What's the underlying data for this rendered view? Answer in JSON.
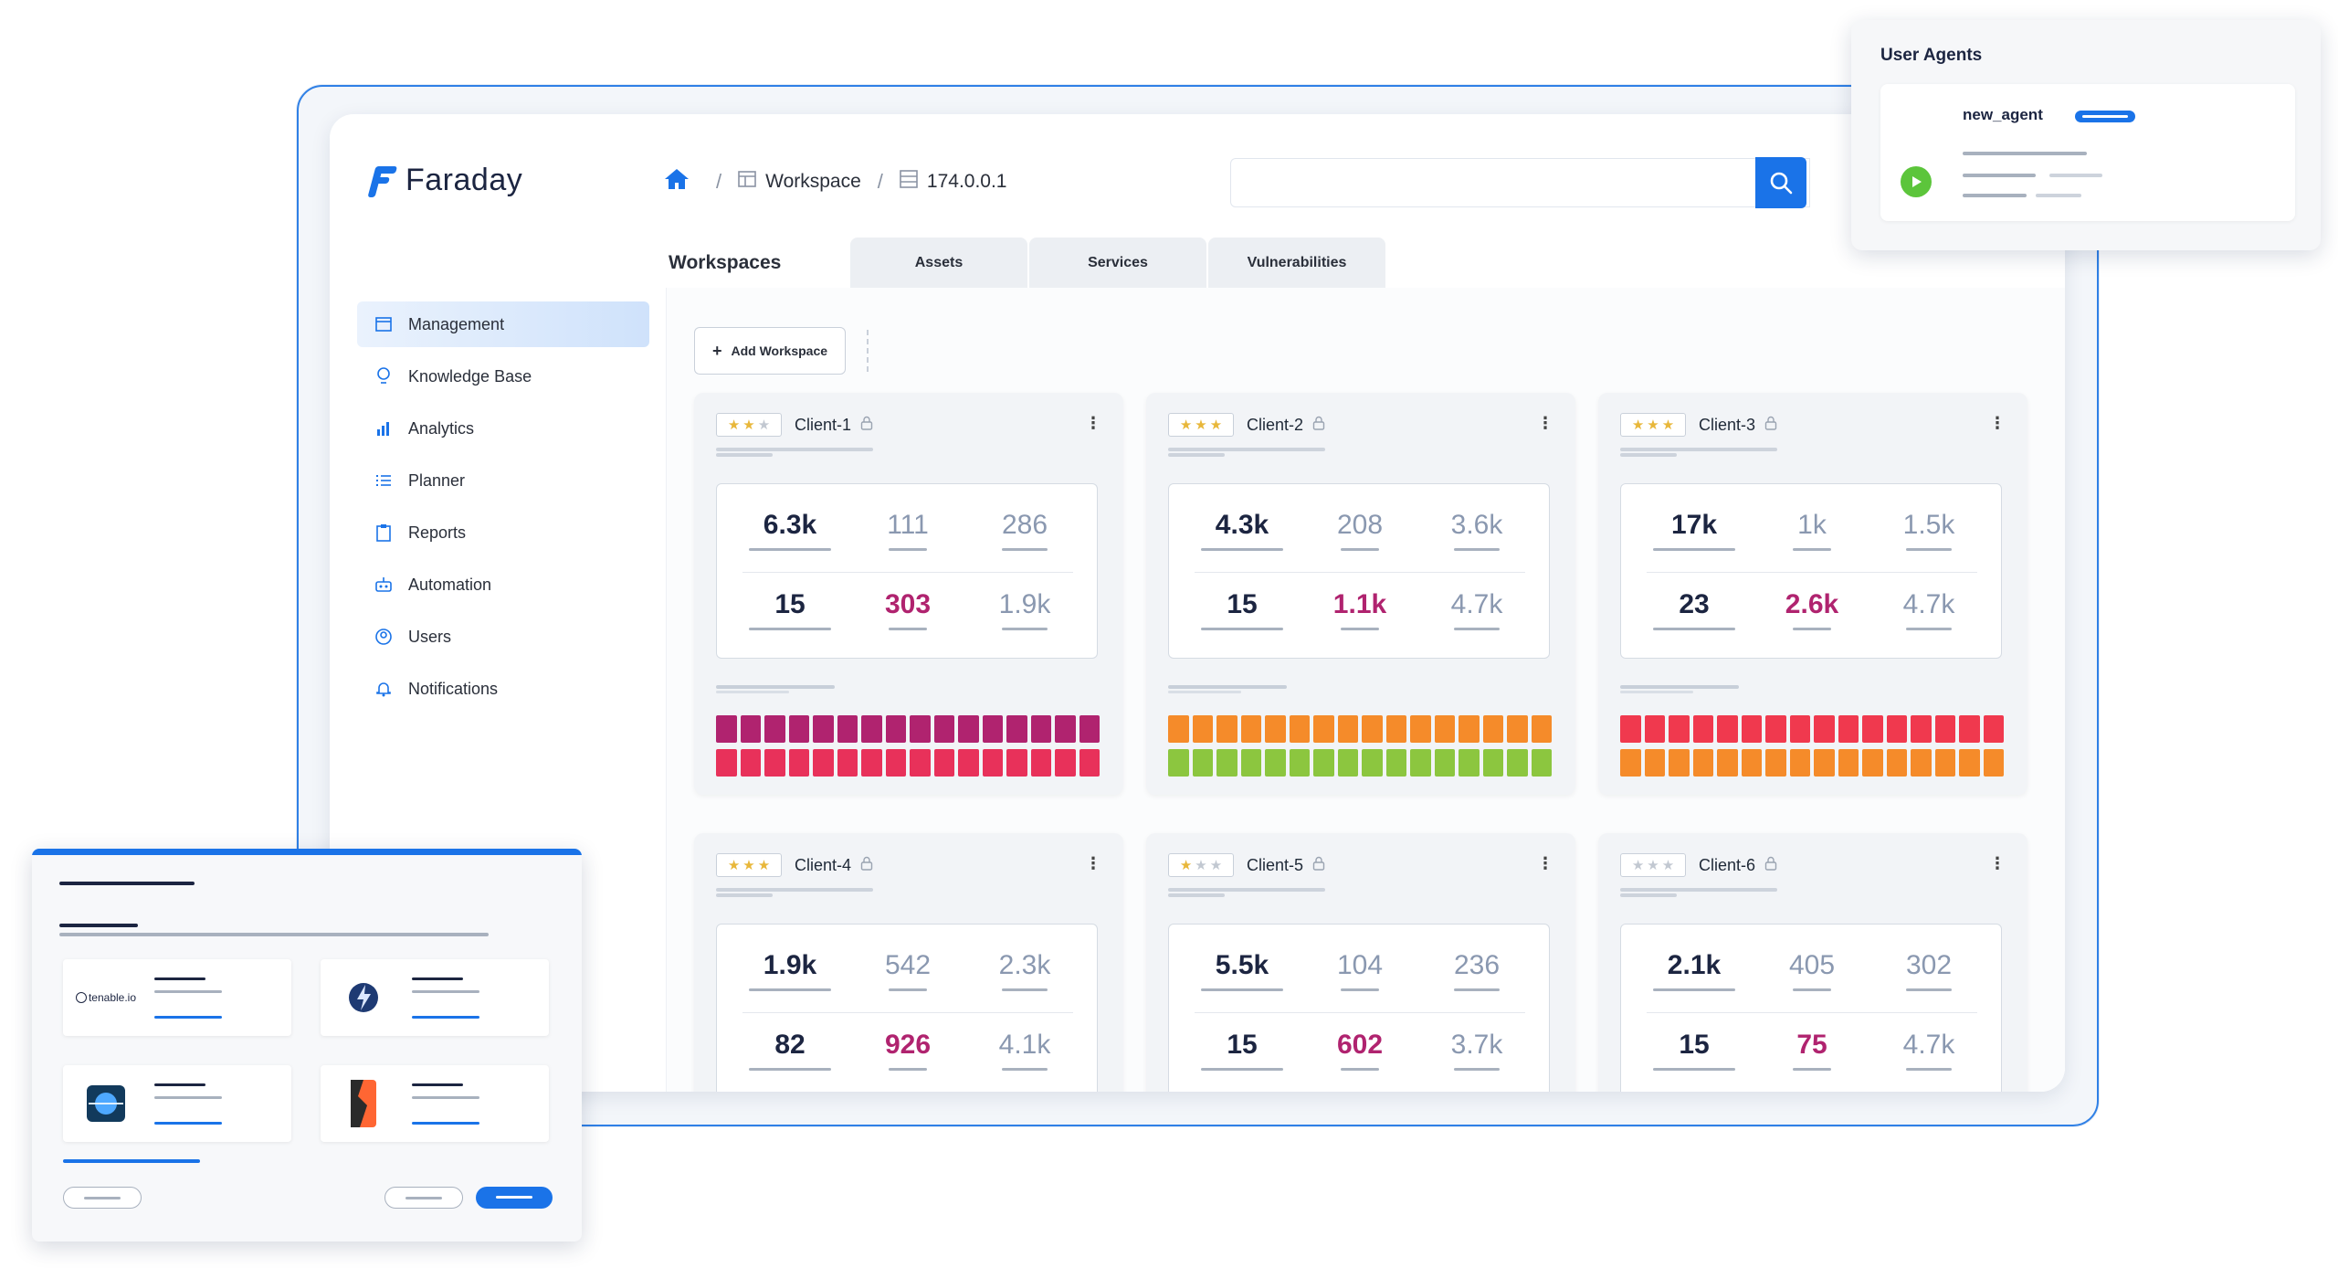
{
  "app": {
    "name": "Faraday"
  },
  "breadcrumb": {
    "workspace": "Workspace",
    "host": "174.0.0.1"
  },
  "sidebar": {
    "items": [
      {
        "label": "Management",
        "icon": "calendar-icon",
        "active": true
      },
      {
        "label": "Knowledge Base",
        "icon": "lightbulb-icon"
      },
      {
        "label": "Analytics",
        "icon": "bar-chart-icon"
      },
      {
        "label": "Planner",
        "icon": "list-icon"
      },
      {
        "label": "Reports",
        "icon": "clipboard-icon"
      },
      {
        "label": "Automation",
        "icon": "robot-icon"
      },
      {
        "label": "Users",
        "icon": "user-circle-icon"
      },
      {
        "label": "Notifications",
        "icon": "bell-icon"
      }
    ]
  },
  "tabs": [
    {
      "label": "Workspaces",
      "active": true
    },
    {
      "label": "Assets"
    },
    {
      "label": "Services"
    },
    {
      "label": "Vulnerabilities"
    }
  ],
  "toolbar": {
    "add_workspace_label": "Add Workspace",
    "plus": "+"
  },
  "workspaces": [
    {
      "name": "Client-1",
      "stars": 2,
      "stats": [
        "6.3k",
        "111",
        "286",
        "15",
        "303",
        "1.9k"
      ],
      "bar_colors": [
        "#b0236f",
        "#e8315a"
      ]
    },
    {
      "name": "Client-2",
      "stars": 3,
      "stats": [
        "4.3k",
        "208",
        "3.6k",
        "15",
        "1.1k",
        "4.7k"
      ],
      "bar_colors": [
        "#f58b2a",
        "#8cc63f"
      ]
    },
    {
      "name": "Client-3",
      "stars": 3,
      "stats": [
        "17k",
        "1k",
        "1.5k",
        "23",
        "2.6k",
        "4.7k"
      ],
      "bar_colors": [
        "#f0394e",
        "#f58b2a"
      ]
    },
    {
      "name": "Client-4",
      "stars": 3,
      "stats": [
        "1.9k",
        "542",
        "2.3k",
        "82",
        "926",
        "4.1k"
      ]
    },
    {
      "name": "Client-5",
      "stars": 1,
      "stats": [
        "5.5k",
        "104",
        "236",
        "15",
        "602",
        "3.7k"
      ]
    },
    {
      "name": "Client-6",
      "stars": 0,
      "stats": [
        "2.1k",
        "405",
        "302",
        "15",
        "75",
        "4.7k"
      ]
    }
  ],
  "user_agents": {
    "title": "User Agents",
    "agent_name": "new_agent",
    "status_color": "#5cc53b"
  },
  "integrations": {
    "tenable_label": "tenable.io"
  },
  "colors": {
    "accent": "#1a73e8",
    "highlight": "#b0236f"
  }
}
